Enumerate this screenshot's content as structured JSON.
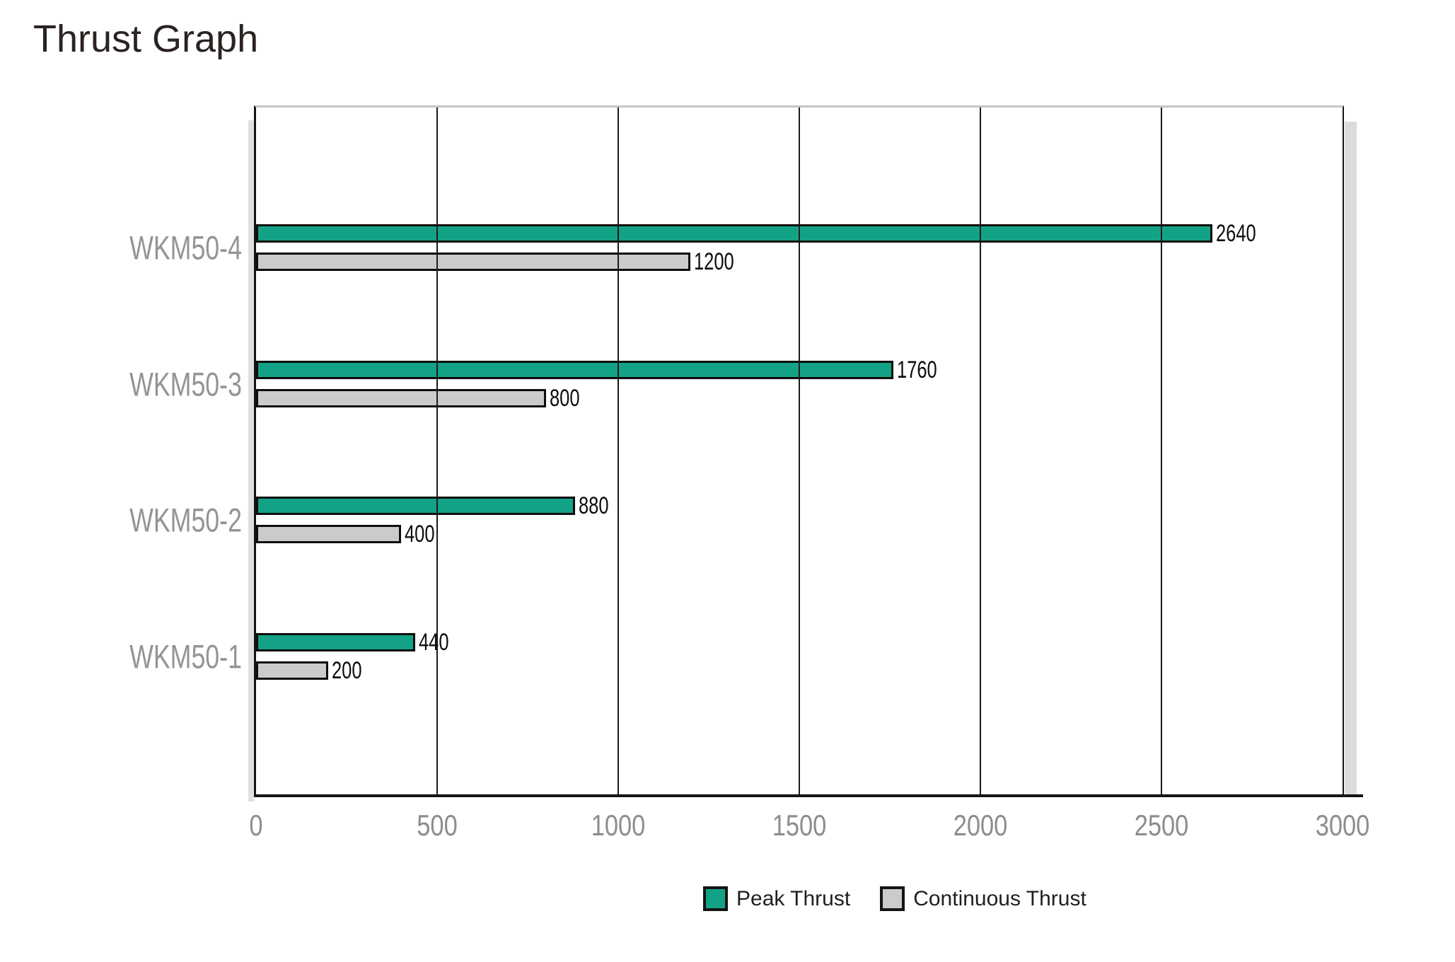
{
  "title": "Thrust Graph",
  "colors": {
    "peak_thrust": "#14a286",
    "continuous_thrust": "#cbcbcb",
    "bar_border": "#0d0d0d",
    "gridline": "#1a1a1a",
    "frame_border": "#141414",
    "frame_top_border": "#c6c6c6",
    "shadow": "#dcdcdc",
    "axis_tick_text": "#8d8d8d",
    "category_text": "#949494",
    "title_text": "#2a2321"
  },
  "chart_data": {
    "type": "bar",
    "orientation": "horizontal",
    "title": "Thrust Graph",
    "categories": [
      "WKM50-4",
      "WKM50-3",
      "WKM50-2",
      "WKM50-1"
    ],
    "series": [
      {
        "name": "Peak Thrust",
        "color": "#14a286",
        "values": [
          2640,
          1760,
          880,
          440
        ]
      },
      {
        "name": "Continuous Thrust",
        "color": "#cbcbcb",
        "values": [
          1200,
          800,
          400,
          200
        ]
      }
    ],
    "value_labels": {
      "peak": [
        "2640",
        "1760",
        "880",
        "440"
      ],
      "continuous": [
        "1200",
        "800",
        "400",
        "200"
      ]
    },
    "xlabel": "",
    "ylabel": "",
    "xlim": [
      0,
      3000
    ],
    "x_ticks": [
      0,
      500,
      1000,
      1500,
      2000,
      2500,
      3000
    ],
    "x_tick_labels": [
      "0",
      "500",
      "1000",
      "1500",
      "2000",
      "2500",
      "3000"
    ],
    "grid": true,
    "legend_position": "bottom"
  },
  "legend": {
    "items": [
      {
        "label": "Peak Thrust",
        "color": "#14a286"
      },
      {
        "label": "Continuous Thrust",
        "color": "#cbcbcb"
      }
    ]
  }
}
